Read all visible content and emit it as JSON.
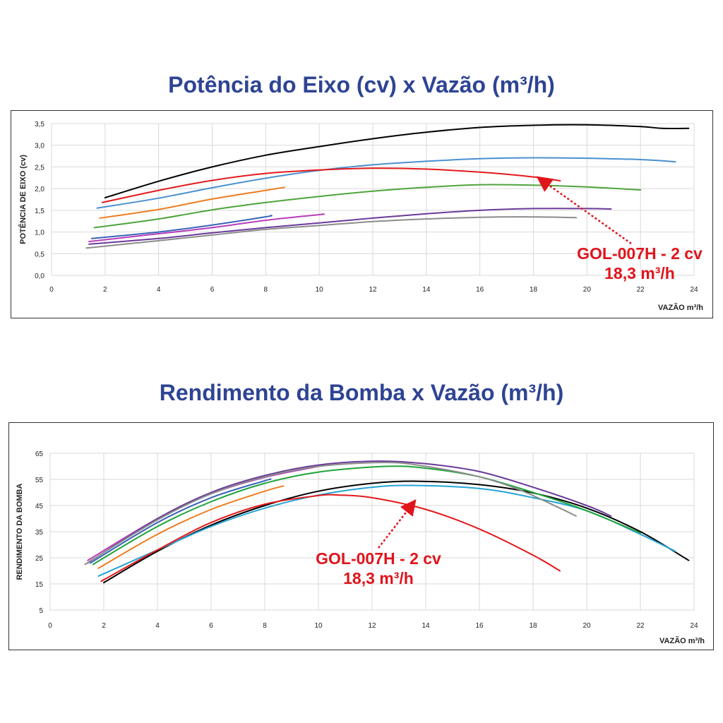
{
  "titles": {
    "power": "Potência do Eixo (cv) x Vazão (m³/h)",
    "efficiency": "Rendimento da Bomba x Vazão (m³/h)"
  },
  "chart_data": [
    {
      "type": "line",
      "title": "Potência do Eixo (cv) x Vazão (m³/h)",
      "xlabel": "VAZÃO m³/h",
      "ylabel": "POTÊNCIA DE EIXO (cv)",
      "xlim": [
        0,
        24
      ],
      "ylim": [
        0,
        3.5
      ],
      "xticks": [
        0,
        2,
        4,
        6,
        8,
        10,
        12,
        14,
        16,
        18,
        20,
        22,
        24
      ],
      "yticks": [
        0,
        0.5,
        1.0,
        1.5,
        2.0,
        2.5,
        3.0,
        3.5
      ],
      "ytick_labels": [
        "0,0",
        "0,5",
        "1,0",
        "1,5",
        "2,0",
        "2,5",
        "3,0",
        "3,5"
      ],
      "grid": true,
      "series": [
        {
          "color": "#000000",
          "x": [
            2,
            4,
            6,
            8,
            10,
            12,
            14,
            16,
            18,
            20,
            22,
            22.8,
            23.8
          ],
          "y": [
            1.79,
            2.17,
            2.5,
            2.77,
            2.97,
            3.15,
            3.3,
            3.41,
            3.46,
            3.47,
            3.43,
            3.39,
            3.39
          ]
        },
        {
          "color": "#4a90d0",
          "x": [
            1.7,
            4,
            6,
            8,
            10,
            12,
            14,
            16,
            18,
            20,
            22,
            23.3
          ],
          "y": [
            1.55,
            1.78,
            2.02,
            2.24,
            2.42,
            2.55,
            2.63,
            2.69,
            2.71,
            2.7,
            2.67,
            2.62
          ]
        },
        {
          "color": "#e31a1c",
          "x": [
            1.9,
            4,
            6,
            8,
            10,
            12,
            14,
            16,
            18,
            19
          ],
          "y": [
            1.68,
            1.96,
            2.19,
            2.35,
            2.43,
            2.47,
            2.45,
            2.38,
            2.27,
            2.18
          ]
        },
        {
          "color": "#4fa43c",
          "x": [
            1.6,
            4,
            6,
            8,
            10,
            12,
            14,
            16,
            18,
            20,
            22
          ],
          "y": [
            1.1,
            1.3,
            1.51,
            1.68,
            1.82,
            1.94,
            2.03,
            2.09,
            2.08,
            2.04,
            1.97
          ]
        },
        {
          "color": "#ed7d22",
          "x": [
            1.8,
            4,
            6,
            8,
            8.7
          ],
          "y": [
            1.32,
            1.52,
            1.76,
            1.96,
            2.03
          ]
        },
        {
          "color": "#3a63b8",
          "x": [
            1.5,
            4,
            6,
            8,
            8.2
          ],
          "y": [
            0.85,
            1.0,
            1.16,
            1.35,
            1.38
          ]
        },
        {
          "color": "#b83db8",
          "x": [
            1.4,
            4,
            6,
            8,
            10,
            10.1
          ],
          "y": [
            0.78,
            0.96,
            1.1,
            1.27,
            1.4,
            1.41
          ]
        },
        {
          "color": "#6a3a9a",
          "x": [
            1.4,
            4,
            6,
            8,
            10,
            12,
            14,
            16,
            18,
            20,
            20.9
          ],
          "y": [
            0.72,
            0.85,
            0.98,
            1.1,
            1.21,
            1.32,
            1.42,
            1.5,
            1.54,
            1.54,
            1.53
          ]
        },
        {
          "color": "#8c8c8c",
          "x": [
            1.3,
            4,
            6,
            8,
            10,
            12,
            14,
            16,
            17.5,
            19,
            19.6
          ],
          "y": [
            0.63,
            0.8,
            0.93,
            1.06,
            1.15,
            1.24,
            1.3,
            1.34,
            1.35,
            1.34,
            1.33
          ]
        }
      ],
      "annotation": {
        "lines": [
          "GOL-007H - 2 cv",
          "18,3 m³/h"
        ],
        "target_x": 18.3,
        "target_y": 2.2
      }
    },
    {
      "type": "line",
      "title": "Rendimento da Bomba x Vazão (m³/h)",
      "xlabel": "VAZÃO m³/h",
      "ylabel": "RENDIMENTO DA BOMBA",
      "xlim": [
        0,
        24
      ],
      "ylim": [
        5,
        65
      ],
      "xticks": [
        0,
        2,
        4,
        6,
        8,
        10,
        12,
        14,
        16,
        18,
        20,
        22,
        24
      ],
      "yticks": [
        5,
        15,
        25,
        35,
        45,
        55,
        65
      ],
      "ytick_labels": [
        "5",
        "15",
        "25",
        "35",
        "45",
        "55",
        "65"
      ],
      "grid": true,
      "series": [
        {
          "color": "#000000",
          "x": [
            2,
            4,
            6,
            8,
            10,
            12,
            13.7,
            16,
            18,
            20,
            22,
            23.8
          ],
          "y": [
            15.5,
            27.5,
            37.5,
            45,
            50.5,
            53.5,
            54.3,
            53,
            49.8,
            44,
            35,
            24
          ]
        },
        {
          "color": "#27a3d6",
          "x": [
            1.8,
            4,
            6,
            8,
            10,
            12,
            13.5,
            16,
            18,
            20,
            22,
            23.3
          ],
          "y": [
            18,
            28,
            37,
            44,
            49,
            52,
            52.7,
            51.5,
            48,
            43,
            34,
            27.5
          ]
        },
        {
          "color": "#e31a1c",
          "x": [
            1.9,
            4,
            6,
            8,
            10,
            10.8,
            12,
            14,
            16,
            18,
            19
          ],
          "y": [
            16,
            28,
            38.5,
            45.5,
            48.8,
            49,
            48,
            43.5,
            36,
            26,
            20
          ]
        },
        {
          "color": "#1fa33a",
          "x": [
            1.6,
            4,
            6,
            8,
            10,
            12.5,
            14,
            16,
            18,
            20,
            22
          ],
          "y": [
            22.5,
            37,
            46.5,
            53.5,
            57.8,
            60,
            59.3,
            56,
            50,
            43,
            34.5
          ]
        },
        {
          "color": "#ed7d22",
          "x": [
            1.8,
            4,
            6,
            8,
            8.7
          ],
          "y": [
            21,
            34,
            43.5,
            50.5,
            52.5
          ]
        },
        {
          "color": "#3a63b8",
          "x": [
            1.5,
            4,
            6,
            8,
            8.2
          ],
          "y": [
            23,
            38.5,
            48,
            54.5,
            55
          ]
        },
        {
          "color": "#b83db8",
          "x": [
            1.4,
            4,
            6,
            8,
            10,
            10.1
          ],
          "y": [
            24,
            40,
            49.5,
            55.8,
            60,
            60.2
          ]
        },
        {
          "color": "#6a3a9a",
          "x": [
            1.4,
            4,
            6,
            8,
            10,
            12.2,
            14,
            16,
            18,
            20,
            20.9
          ],
          "y": [
            23,
            40,
            50,
            56.5,
            60.5,
            62,
            61,
            58,
            52,
            45,
            41
          ]
        },
        {
          "color": "#8c8c8c",
          "x": [
            1.3,
            4,
            6,
            8,
            10,
            12.5,
            14,
            16,
            17.5,
            19,
            19.6
          ],
          "y": [
            22.5,
            39.5,
            49.5,
            56,
            60,
            61.5,
            60,
            56,
            51,
            44,
            41
          ]
        }
      ],
      "annotation": {
        "lines": [
          "GOL-007H - 2 cv",
          "18,3 m³/h"
        ],
        "target_x": 13.5,
        "target_y": 45.5
      }
    }
  ]
}
